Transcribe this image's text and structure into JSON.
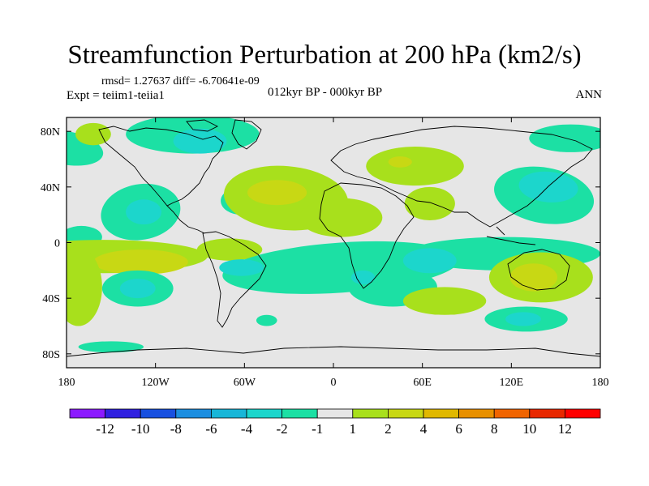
{
  "header": {
    "title": "Streamfunction Perturbation at 200 hPa (km2/s)",
    "stats": "rmsd= 1.27637  diff= -6.70641e-09",
    "expt": "Expt = teiim1-teiia1",
    "center": "012kyr BP - 000kyr BP",
    "season": "ANN"
  },
  "chart_data": {
    "type": "heatmap",
    "title": "Streamfunction Perturbation at 200 hPa (km2/s)",
    "xlabel": "",
    "ylabel": "",
    "xlim": [
      -180,
      180
    ],
    "ylim": [
      -90,
      90
    ],
    "x_ticks": [
      {
        "value": -180,
        "label": "180"
      },
      {
        "value": -120,
        "label": "120W"
      },
      {
        "value": -60,
        "label": "60W"
      },
      {
        "value": 0,
        "label": "0"
      },
      {
        "value": 60,
        "label": "60E"
      },
      {
        "value": 120,
        "label": "120E"
      },
      {
        "value": 180,
        "label": "180"
      }
    ],
    "y_ticks": [
      {
        "value": 80,
        "label": "80N"
      },
      {
        "value": 40,
        "label": "40N"
      },
      {
        "value": 0,
        "label": "0"
      },
      {
        "value": -40,
        "label": "40S"
      },
      {
        "value": -80,
        "label": "80S"
      }
    ],
    "colorbar": {
      "labels": [
        "-12",
        "-10",
        "-8",
        "-6",
        "-4",
        "-2",
        "-1",
        "1",
        "2",
        "4",
        "6",
        "8",
        "10",
        "12"
      ],
      "colors": [
        "#8c1aff",
        "#3020e0",
        "#1850e0",
        "#1c8ee0",
        "#18b6d8",
        "#1cd6cc",
        "#1ce0a4",
        "#e6e6e6",
        "#a8e01c",
        "#c8d814",
        "#e0b800",
        "#e89000",
        "#f06400",
        "#e82800",
        "#ff0000"
      ]
    },
    "regions": [
      {
        "level": "-1",
        "color": "#1ce0a4",
        "lon": -95,
        "lat": 78,
        "rlon": 45,
        "rlat": 14,
        "rot": 0
      },
      {
        "level": "-1",
        "color": "#1ce0a4",
        "lon": -180,
        "lat": 68,
        "rlon": 25,
        "rlat": 12,
        "rot": 10
      },
      {
        "level": "-1",
        "color": "#1ce0a4",
        "lon": 160,
        "lat": 75,
        "rlon": 28,
        "rlat": 10,
        "rot": 0
      },
      {
        "level": "-2",
        "color": "#1cd6cc",
        "lon": -90,
        "lat": 73,
        "rlon": 18,
        "rlat": 9,
        "rot": 0
      },
      {
        "level": "-1",
        "color": "#1ce0a4",
        "lon": -130,
        "lat": 22,
        "rlon": 27,
        "rlat": 20,
        "rot": -10
      },
      {
        "level": "-2",
        "color": "#1cd6cc",
        "lon": -128,
        "lat": 22,
        "rlon": 12,
        "rlat": 9,
        "rot": 0
      },
      {
        "level": "-1",
        "color": "#1ce0a4",
        "lon": -62,
        "lat": 30,
        "rlon": 14,
        "rlat": 10,
        "rot": 0
      },
      {
        "level": "-1",
        "color": "#1ce0a4",
        "lon": -170,
        "lat": 4,
        "rlon": 14,
        "rlat": 8,
        "rot": 0
      },
      {
        "level": "-1",
        "color": "#1ce0a4",
        "lon": 142,
        "lat": 34,
        "rlon": 34,
        "rlat": 20,
        "rot": 10
      },
      {
        "level": "-2",
        "color": "#1cd6cc",
        "lon": 145,
        "lat": 40,
        "rlon": 20,
        "rlat": 11,
        "rot": 5
      },
      {
        "level": "1",
        "color": "#a8e01c",
        "lon": -32,
        "lat": 32,
        "rlon": 42,
        "rlat": 23,
        "rot": 5
      },
      {
        "level": "1",
        "color": "#a8e01c",
        "lon": 5,
        "lat": 18,
        "rlon": 28,
        "rlat": 14,
        "rot": 0
      },
      {
        "level": "2",
        "color": "#c8d814",
        "lon": -38,
        "lat": 36,
        "rlon": 20,
        "rlat": 9,
        "rot": 0
      },
      {
        "level": "1",
        "color": "#a8e01c",
        "lon": 55,
        "lat": 55,
        "rlon": 33,
        "rlat": 14,
        "rot": 0
      },
      {
        "level": "2",
        "color": "#c8d814",
        "lon": 45,
        "lat": 58,
        "rlon": 8,
        "rlat": 4,
        "rot": 0
      },
      {
        "level": "1",
        "color": "#a8e01c",
        "lon": 65,
        "lat": 28,
        "rlon": 17,
        "rlat": 12,
        "rot": 0
      },
      {
        "level": "1",
        "color": "#a8e01c",
        "lon": -162,
        "lat": 78,
        "rlon": 12,
        "rlat": 8,
        "rot": 0
      },
      {
        "level": "1",
        "color": "#a8e01c",
        "lon": -155,
        "lat": -10,
        "rlon": 70,
        "rlat": 12,
        "rot": 0
      },
      {
        "level": "2",
        "color": "#c8d814",
        "lon": -130,
        "lat": -14,
        "rlon": 32,
        "rlat": 9,
        "rot": 0
      },
      {
        "level": "1",
        "color": "#a8e01c",
        "lon": -172,
        "lat": -32,
        "rlon": 16,
        "rlat": 28,
        "rot": 0
      },
      {
        "level": "1",
        "color": "#a8e01c",
        "lon": -70,
        "lat": -5,
        "rlon": 22,
        "rlat": 8,
        "rot": 0
      },
      {
        "level": "-1",
        "color": "#1ce0a4",
        "lon": 5,
        "lat": -18,
        "rlon": 80,
        "rlat": 18,
        "rot": -4
      },
      {
        "level": "-1",
        "color": "#1ce0a4",
        "lon": 40,
        "lat": -32,
        "rlon": 30,
        "rlat": 14,
        "rot": 0
      },
      {
        "level": "-1",
        "color": "#1ce0a4",
        "lon": 115,
        "lat": -8,
        "rlon": 65,
        "rlat": 12,
        "rot": 0
      },
      {
        "level": "-2",
        "color": "#1cd6cc",
        "lon": 65,
        "lat": -13,
        "rlon": 18,
        "rlat": 9,
        "rot": 0
      },
      {
        "level": "-2",
        "color": "#1cd6cc",
        "lon": -62,
        "lat": -18,
        "rlon": 15,
        "rlat": 6,
        "rot": 0
      },
      {
        "level": "-2",
        "color": "#1cd6cc",
        "lon": 20,
        "lat": -25,
        "rlon": 8,
        "rlat": 5,
        "rot": 0
      },
      {
        "level": "1",
        "color": "#a8e01c",
        "lon": 140,
        "lat": -25,
        "rlon": 35,
        "rlat": 18,
        "rot": 0
      },
      {
        "level": "2",
        "color": "#c8d814",
        "lon": 135,
        "lat": -25,
        "rlon": 16,
        "rlat": 10,
        "rot": 0
      },
      {
        "level": "1",
        "color": "#a8e01c",
        "lon": 75,
        "lat": -42,
        "rlon": 28,
        "rlat": 10,
        "rot": 0
      },
      {
        "level": "-1",
        "color": "#1ce0a4",
        "lon": -132,
        "lat": -33,
        "rlon": 24,
        "rlat": 13,
        "rot": 0
      },
      {
        "level": "-2",
        "color": "#1cd6cc",
        "lon": -132,
        "lat": -33,
        "rlon": 12,
        "rlat": 7,
        "rot": 0
      },
      {
        "level": "-1",
        "color": "#1ce0a4",
        "lon": 130,
        "lat": -55,
        "rlon": 28,
        "rlat": 9,
        "rot": 0
      },
      {
        "level": "-2",
        "color": "#1cd6cc",
        "lon": 128,
        "lat": -55,
        "rlon": 12,
        "rlat": 5,
        "rot": 0
      },
      {
        "level": "-1",
        "color": "#1ce0a4",
        "lon": -45,
        "lat": -56,
        "rlon": 7,
        "rlat": 4,
        "rot": 0
      },
      {
        "level": "-1",
        "color": "#1ce0a4",
        "lon": -150,
        "lat": -75,
        "rlon": 22,
        "rlat": 4,
        "rot": 0
      }
    ]
  }
}
